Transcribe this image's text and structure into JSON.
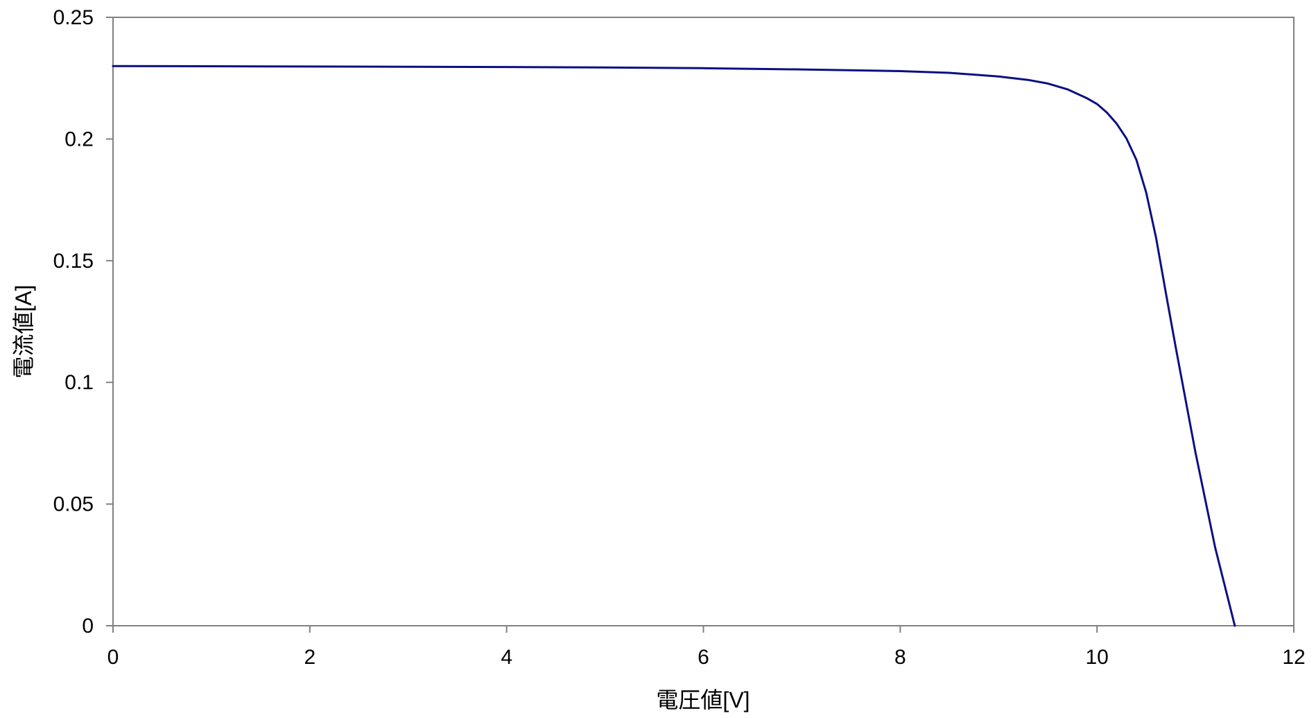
{
  "chart_data": {
    "type": "line",
    "title": "",
    "xlabel": "電圧値[V]",
    "ylabel": "電流値[A]",
    "xlim": [
      0,
      12
    ],
    "ylim": [
      0,
      0.25
    ],
    "xticks": [
      0,
      2,
      4,
      6,
      8,
      10,
      12
    ],
    "yticks": [
      0,
      0.05,
      0.1,
      0.15,
      0.2,
      0.25
    ],
    "xtick_labels": [
      "0",
      "2",
      "4",
      "6",
      "8",
      "10",
      "12"
    ],
    "ytick_labels": [
      "0",
      "0.05",
      "0.1",
      "0.15",
      "0.2",
      "0.25"
    ],
    "grid": false,
    "legend": "none",
    "series": [
      {
        "color": "#0a0f82",
        "points": [
          [
            0,
            0.23
          ],
          [
            1,
            0.2299
          ],
          [
            2,
            0.2298
          ],
          [
            3,
            0.2297
          ],
          [
            4,
            0.2296
          ],
          [
            5,
            0.2294
          ],
          [
            6,
            0.2291
          ],
          [
            7,
            0.2286
          ],
          [
            8,
            0.2279
          ],
          [
            8.5,
            0.2272
          ],
          [
            9,
            0.2257
          ],
          [
            9.3,
            0.2243
          ],
          [
            9.5,
            0.2228
          ],
          [
            9.7,
            0.2204
          ],
          [
            9.9,
            0.2167
          ],
          [
            10.0,
            0.2144
          ],
          [
            10.1,
            0.2109
          ],
          [
            10.2,
            0.2063
          ],
          [
            10.3,
            0.2002
          ],
          [
            10.4,
            0.1915
          ],
          [
            10.5,
            0.178
          ],
          [
            10.6,
            0.1595
          ],
          [
            10.7,
            0.1367
          ],
          [
            10.8,
            0.1144
          ],
          [
            11.0,
            0.0713
          ],
          [
            11.2,
            0.0322
          ],
          [
            11.4,
            0.0
          ]
        ]
      }
    ]
  }
}
